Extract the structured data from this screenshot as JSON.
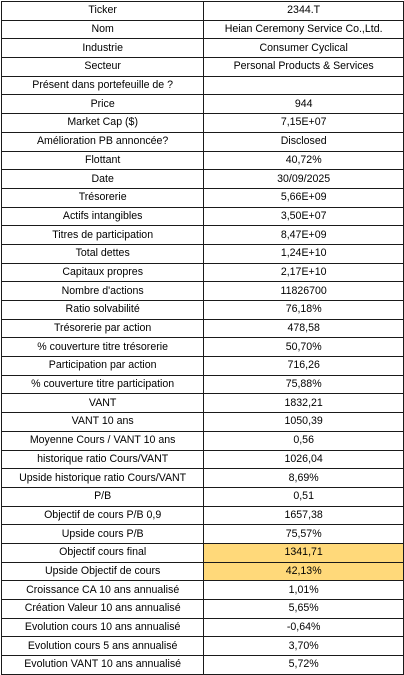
{
  "sheet": {
    "rows": [
      {
        "label": "Ticker",
        "value": "2344.T"
      },
      {
        "label": "Nom",
        "value": "Heian Ceremony Service Co.,Ltd."
      },
      {
        "label": "Industrie",
        "value": "Consumer Cyclical"
      },
      {
        "label": "Secteur",
        "value": "Personal Products & Services"
      },
      {
        "label": "Présent dans portefeuille de ?",
        "value": ""
      },
      {
        "label": "Price",
        "value": "944"
      },
      {
        "label": "Market Cap ($)",
        "value": "7,15E+07"
      },
      {
        "label": "Amélioration PB annoncée?",
        "value": "Disclosed"
      },
      {
        "label": "Flottant",
        "value": "40,72%"
      },
      {
        "label": "Date",
        "value": "30/09/2025"
      },
      {
        "label": "Trésorerie",
        "value": "5,66E+09"
      },
      {
        "label": "Actifs intangibles",
        "value": "3,50E+07"
      },
      {
        "label": "Titres de participation",
        "value": "8,47E+09"
      },
      {
        "label": "Total dettes",
        "value": "1,24E+10"
      },
      {
        "label": "Capitaux propres",
        "value": "2,17E+10"
      },
      {
        "label": "Nombre d'actions",
        "value": "11826700"
      },
      {
        "label": "Ratio solvabilité",
        "value": "76,18%"
      },
      {
        "label": "Trésorerie par action",
        "value": "478,58"
      },
      {
        "label": "% couverture titre trésorerie",
        "value": "50,70%"
      },
      {
        "label": "Participation par action",
        "value": "716,26"
      },
      {
        "label": "% couverture titre participation",
        "value": "75,88%"
      },
      {
        "label": "VANT",
        "value": "1832,21"
      },
      {
        "label": "VANT 10 ans",
        "value": "1050,39"
      },
      {
        "label": "Moyenne Cours / VANT 10 ans",
        "value": "0,56"
      },
      {
        "label": "historique ratio Cours/VANT",
        "value": "1026,04"
      },
      {
        "label": "Upside historique ratio Cours/VANT",
        "value": "8,69%"
      },
      {
        "label": "P/B",
        "value": "0,51"
      },
      {
        "label": "Objectif de cours P/B 0,9",
        "value": "1657,38"
      },
      {
        "label": "Upside cours P/B",
        "value": "75,57%"
      },
      {
        "label": "Objectif cours final",
        "value": "1341,71"
      },
      {
        "label": "Upside Objectif de cours",
        "value": "42,13%"
      },
      {
        "label": "Croissance CA 10 ans annualisé",
        "value": "1,01%"
      },
      {
        "label": "Création Valeur 10 ans annualisé",
        "value": "5,65%"
      },
      {
        "label": "Evolution cours 10 ans annualisé",
        "value": "-0,64%"
      },
      {
        "label": "Evolution cours 5 ans annualisé",
        "value": "3,70%"
      },
      {
        "label": "Evolution VANT 10 ans annualisé",
        "value": "5,72%"
      }
    ],
    "highlight_color": "#ffd97a"
  }
}
